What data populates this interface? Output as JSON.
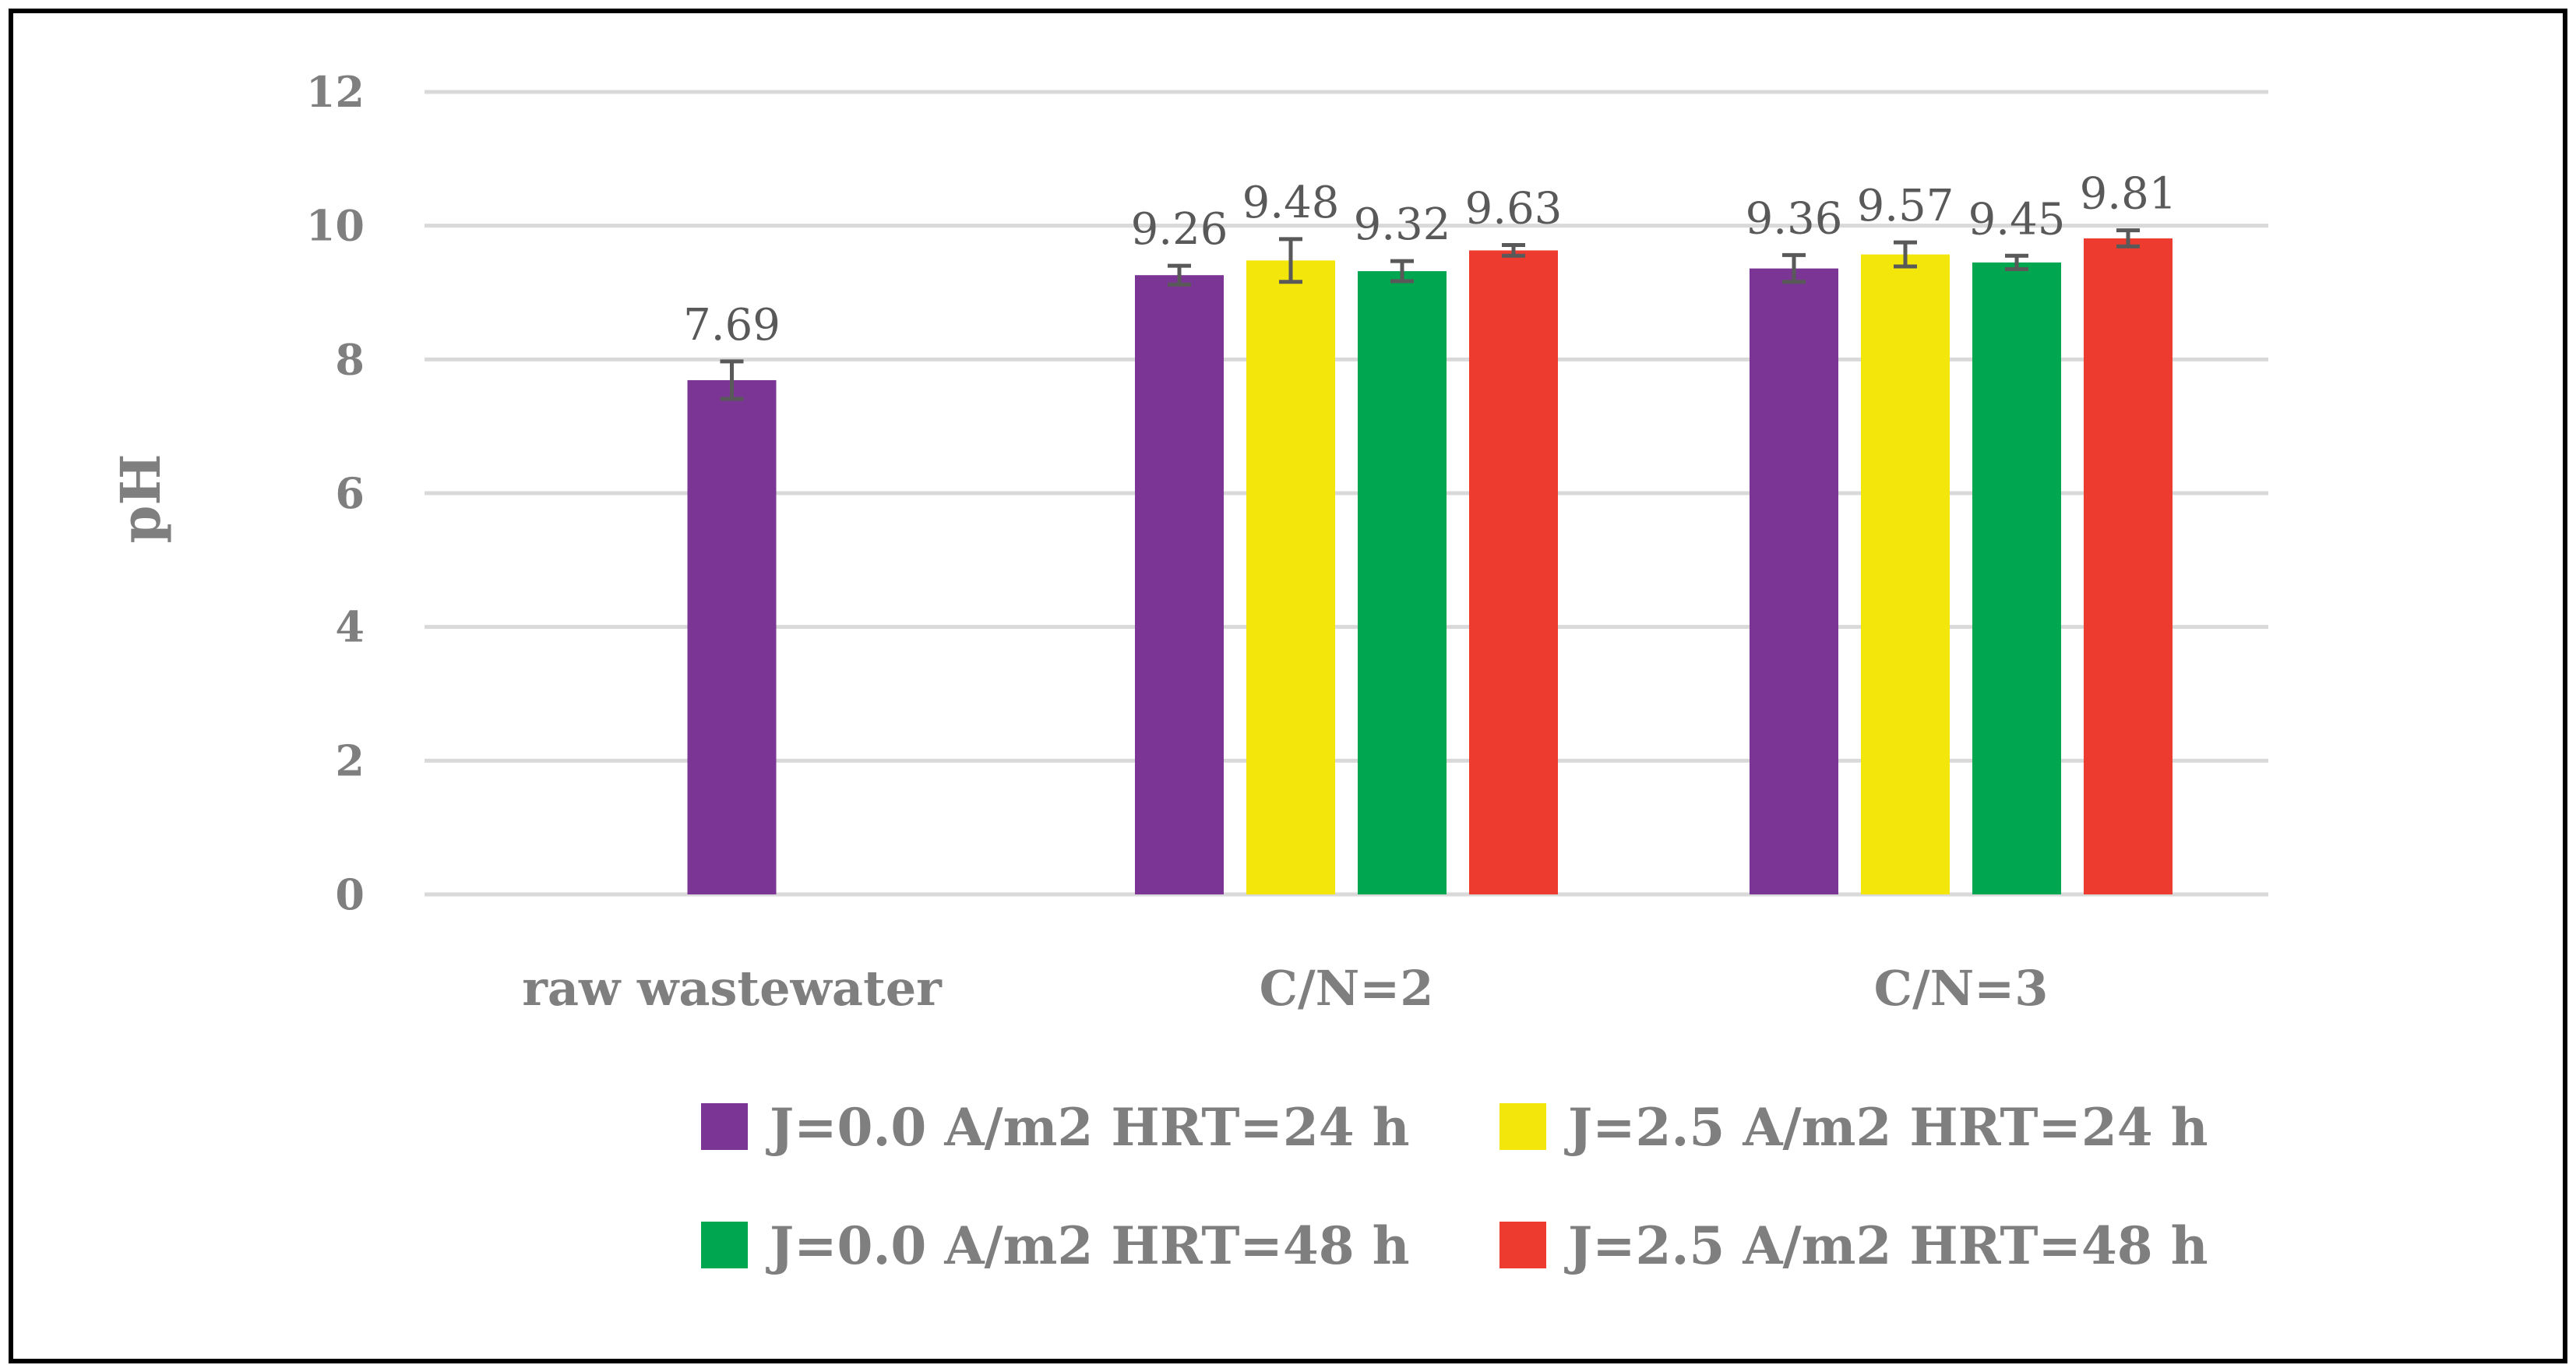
{
  "chart_data": {
    "type": "bar",
    "title": "",
    "xlabel": "",
    "ylabel": "pH",
    "ylim": [
      0,
      12
    ],
    "yticks": [
      0,
      2,
      4,
      6,
      8,
      10,
      12
    ],
    "grid": true,
    "legend_position": "bottom",
    "categories": [
      "raw wastewater",
      "C/N=2",
      "C/N=3"
    ],
    "series": [
      {
        "name": "J=0.0 A/m2 HRT=24 h",
        "color": "#7b3594",
        "values": [
          7.69,
          9.26,
          9.36
        ],
        "errors": [
          0.28,
          0.14,
          0.2
        ],
        "labels": [
          "7.69",
          "9.26",
          "9.36"
        ]
      },
      {
        "name": "J=2.5 A/m2 HRT=24 h",
        "color": "#f2e60a",
        "values": [
          null,
          9.48,
          9.57
        ],
        "errors": [
          null,
          0.32,
          0.18
        ],
        "labels": [
          null,
          "9.48",
          "9.57"
        ]
      },
      {
        "name": "J=0.0 A/m2 HRT=48 h",
        "color": "#00a650",
        "values": [
          null,
          9.32,
          9.45
        ],
        "errors": [
          null,
          0.15,
          0.1
        ],
        "labels": [
          null,
          "9.32",
          "9.45"
        ]
      },
      {
        "name": "J=2.5 A/m2 HRT=48 h",
        "color": "#ee3b2f",
        "values": [
          null,
          9.63,
          9.81
        ],
        "errors": [
          null,
          0.08,
          0.12
        ],
        "labels": [
          null,
          "9.63",
          "9.81"
        ]
      }
    ]
  }
}
